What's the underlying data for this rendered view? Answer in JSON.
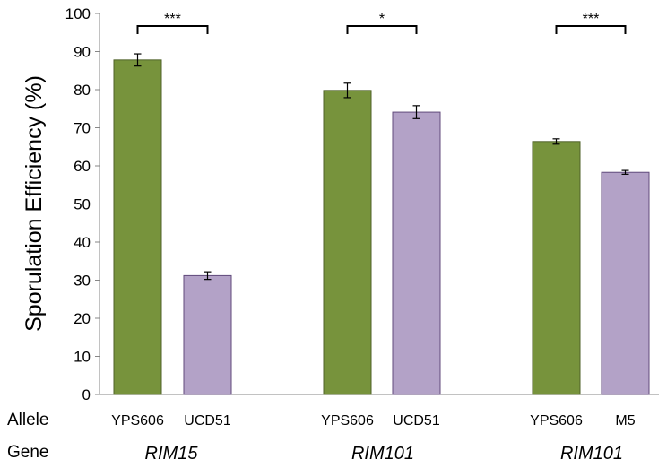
{
  "chart_data": {
    "type": "bar",
    "ylabel": "Sporulation Efficiency (%)",
    "ylim": [
      0,
      100
    ],
    "yticks": [
      0,
      10,
      20,
      30,
      40,
      50,
      60,
      70,
      80,
      90,
      100
    ],
    "row_labels": {
      "allele": "Allele",
      "gene": "Gene"
    },
    "groups": [
      {
        "gene": "RIM15",
        "significance": "***",
        "bars": [
          {
            "allele": "YPS606",
            "value": 87.8,
            "error": 1.6,
            "color": "#77933c"
          },
          {
            "allele": "UCD51",
            "value": 31.2,
            "error": 1.0,
            "color": "#b3a2c7"
          }
        ]
      },
      {
        "gene": "RIM101",
        "significance": "*",
        "bars": [
          {
            "allele": "YPS606",
            "value": 79.8,
            "error": 1.9,
            "color": "#77933c"
          },
          {
            "allele": "UCD51",
            "value": 74.1,
            "error": 1.7,
            "color": "#b3a2c7"
          }
        ]
      },
      {
        "gene": "RIM101",
        "significance": "***",
        "bars": [
          {
            "allele": "YPS606",
            "value": 66.4,
            "error": 0.7,
            "color": "#77933c"
          },
          {
            "allele": "M5",
            "value": 58.3,
            "error": 0.5,
            "color": "#b3a2c7"
          }
        ]
      }
    ],
    "grid": false,
    "legend": "none"
  }
}
